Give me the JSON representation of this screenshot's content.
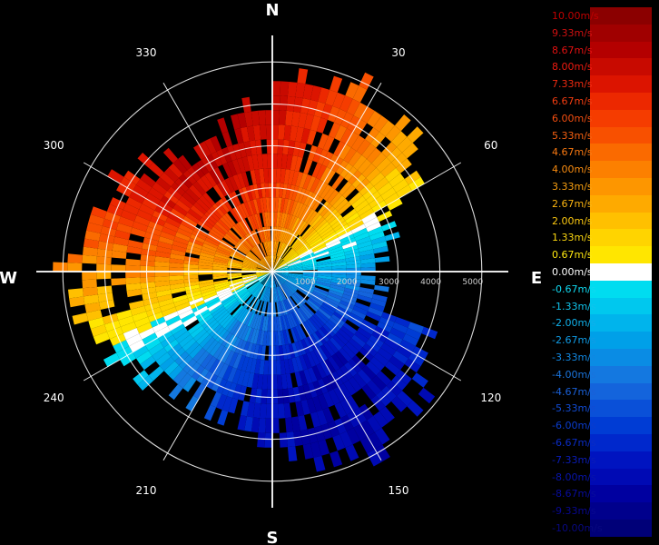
{
  "chart_data": {
    "type": "polar-radar-velocity",
    "cardinals": {
      "n": "N",
      "e": "E",
      "s": "S",
      "w": "W"
    },
    "angle_labels": [
      {
        "angle": 30,
        "text": "30"
      },
      {
        "angle": 60,
        "text": "60"
      },
      {
        "angle": 120,
        "text": "120"
      },
      {
        "angle": 150,
        "text": "150"
      },
      {
        "angle": 210,
        "text": "210"
      },
      {
        "angle": 240,
        "text": "240"
      },
      {
        "angle": 300,
        "text": "300"
      },
      {
        "angle": 330,
        "text": "330"
      }
    ],
    "range_rings": [
      1000,
      2000,
      3000,
      4000,
      5000
    ],
    "range_labels": [
      "1000",
      "2000",
      "3000",
      "4000",
      "5000"
    ],
    "range_max": 5200,
    "velocity_range": [
      -10,
      10
    ],
    "legend": [
      {
        "label": "10.00m/s",
        "value": 10.0,
        "color": "#8b0000",
        "text_color": "#c00000"
      },
      {
        "label": "9.33m/s",
        "value": 9.33,
        "color": "#a00000",
        "text_color": "#d01010"
      },
      {
        "label": "8.67m/s",
        "value": 8.67,
        "color": "#b40000",
        "text_color": "#e01010"
      },
      {
        "label": "8.00m/s",
        "value": 8.0,
        "color": "#c80a00",
        "text_color": "#ee1a10"
      },
      {
        "label": "7.33m/s",
        "value": 7.33,
        "color": "#dc1400",
        "text_color": "#f02a10"
      },
      {
        "label": "6.67m/s",
        "value": 6.67,
        "color": "#ec2800",
        "text_color": "#f23c10"
      },
      {
        "label": "6.00m/s",
        "value": 6.0,
        "color": "#f53c00",
        "text_color": "#f44e10"
      },
      {
        "label": "5.33m/s",
        "value": 5.33,
        "color": "#f85000",
        "text_color": "#f66010"
      },
      {
        "label": "4.67m/s",
        "value": 4.67,
        "color": "#fa6a00",
        "text_color": "#f87810"
      },
      {
        "label": "4.00m/s",
        "value": 4.0,
        "color": "#fc8000",
        "text_color": "#f98c10"
      },
      {
        "label": "3.33m/s",
        "value": 3.33,
        "color": "#fd9600",
        "text_color": "#faa010"
      },
      {
        "label": "2.67m/s",
        "value": 2.67,
        "color": "#feaa00",
        "text_color": "#fbb410"
      },
      {
        "label": "2.00m/s",
        "value": 2.0,
        "color": "#ffc000",
        "text_color": "#fcc810"
      },
      {
        "label": "1.33m/s",
        "value": 1.33,
        "color": "#ffd400",
        "text_color": "#fdd810"
      },
      {
        "label": "0.67m/s",
        "value": 0.67,
        "color": "#ffe600",
        "text_color": "#fee810"
      },
      {
        "label": "0.00m/s",
        "value": 0.0,
        "color": "#ffffff",
        "text_color": "#ffffff"
      },
      {
        "label": "-0.67m/s",
        "value": -0.67,
        "color": "#00dcf0",
        "text_color": "#10d8f0"
      },
      {
        "label": "-1.33m/s",
        "value": -1.33,
        "color": "#00c8ee",
        "text_color": "#10c4ec"
      },
      {
        "label": "-2.00m/s",
        "value": -2.0,
        "color": "#00b4ec",
        "text_color": "#10b0ea"
      },
      {
        "label": "-2.67m/s",
        "value": -2.67,
        "color": "#00a0e8",
        "text_color": "#109ce6"
      },
      {
        "label": "-3.33m/s",
        "value": -3.33,
        "color": "#0a8ce4",
        "text_color": "#1288e2"
      },
      {
        "label": "-4.00m/s",
        "value": -4.0,
        "color": "#1478e0",
        "text_color": "#1a74dc"
      },
      {
        "label": "-4.67m/s",
        "value": -4.67,
        "color": "#1464dc",
        "text_color": "#1a60d8"
      },
      {
        "label": "-5.33m/s",
        "value": -5.33,
        "color": "#0a50d8",
        "text_color": "#124cd4"
      },
      {
        "label": "-6.00m/s",
        "value": -6.0,
        "color": "#003cd4",
        "text_color": "#0a3ccc"
      },
      {
        "label": "-6.67m/s",
        "value": -6.67,
        "color": "#0028cc",
        "text_color": "#0a2cc4"
      },
      {
        "label": "-7.33m/s",
        "value": -7.33,
        "color": "#0014c0",
        "text_color": "#0a1cb8"
      },
      {
        "label": "-8.00m/s",
        "value": -8.0,
        "color": "#000ab4",
        "text_color": "#0814aa"
      },
      {
        "label": "-8.67m/s",
        "value": -8.67,
        "color": "#0000a0",
        "text_color": "#080c9c"
      },
      {
        "label": "-9.33m/s",
        "value": -9.33,
        "color": "#00008c",
        "text_color": "#080890"
      },
      {
        "label": "-10.00m/s",
        "value": -10.0,
        "color": "#000078",
        "text_color": "#080880"
      }
    ]
  }
}
